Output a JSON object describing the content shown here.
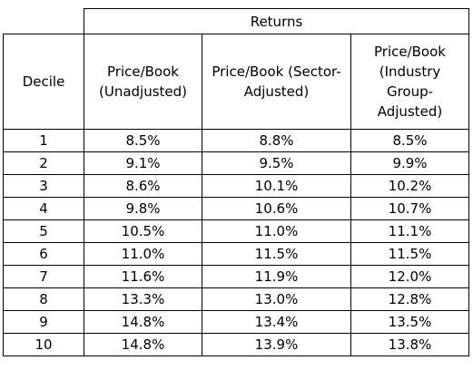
{
  "table": {
    "group_header": "Returns",
    "columns": [
      "Decile",
      "Price/Book (Unadjusted)",
      "Price/Book (Sector-Adjusted)",
      "Price/Book (Industry Group-Adjusted)"
    ],
    "rows": [
      [
        "1",
        "8.5%",
        "8.8%",
        "8.5%"
      ],
      [
        "2",
        "9.1%",
        "9.5%",
        "9.9%"
      ],
      [
        "3",
        "8.6%",
        "10.1%",
        "10.2%"
      ],
      [
        "4",
        "9.8%",
        "10.6%",
        "10.7%"
      ],
      [
        "5",
        "10.5%",
        "11.0%",
        "11.1%"
      ],
      [
        "6",
        "11.0%",
        "11.5%",
        "11.5%"
      ],
      [
        "7",
        "11.6%",
        "11.9%",
        "12.0%"
      ],
      [
        "8",
        "13.3%",
        "13.0%",
        "12.8%"
      ],
      [
        "9",
        "14.8%",
        "13.4%",
        "13.5%"
      ],
      [
        "10",
        "14.8%",
        "13.9%",
        "13.8%"
      ]
    ]
  }
}
